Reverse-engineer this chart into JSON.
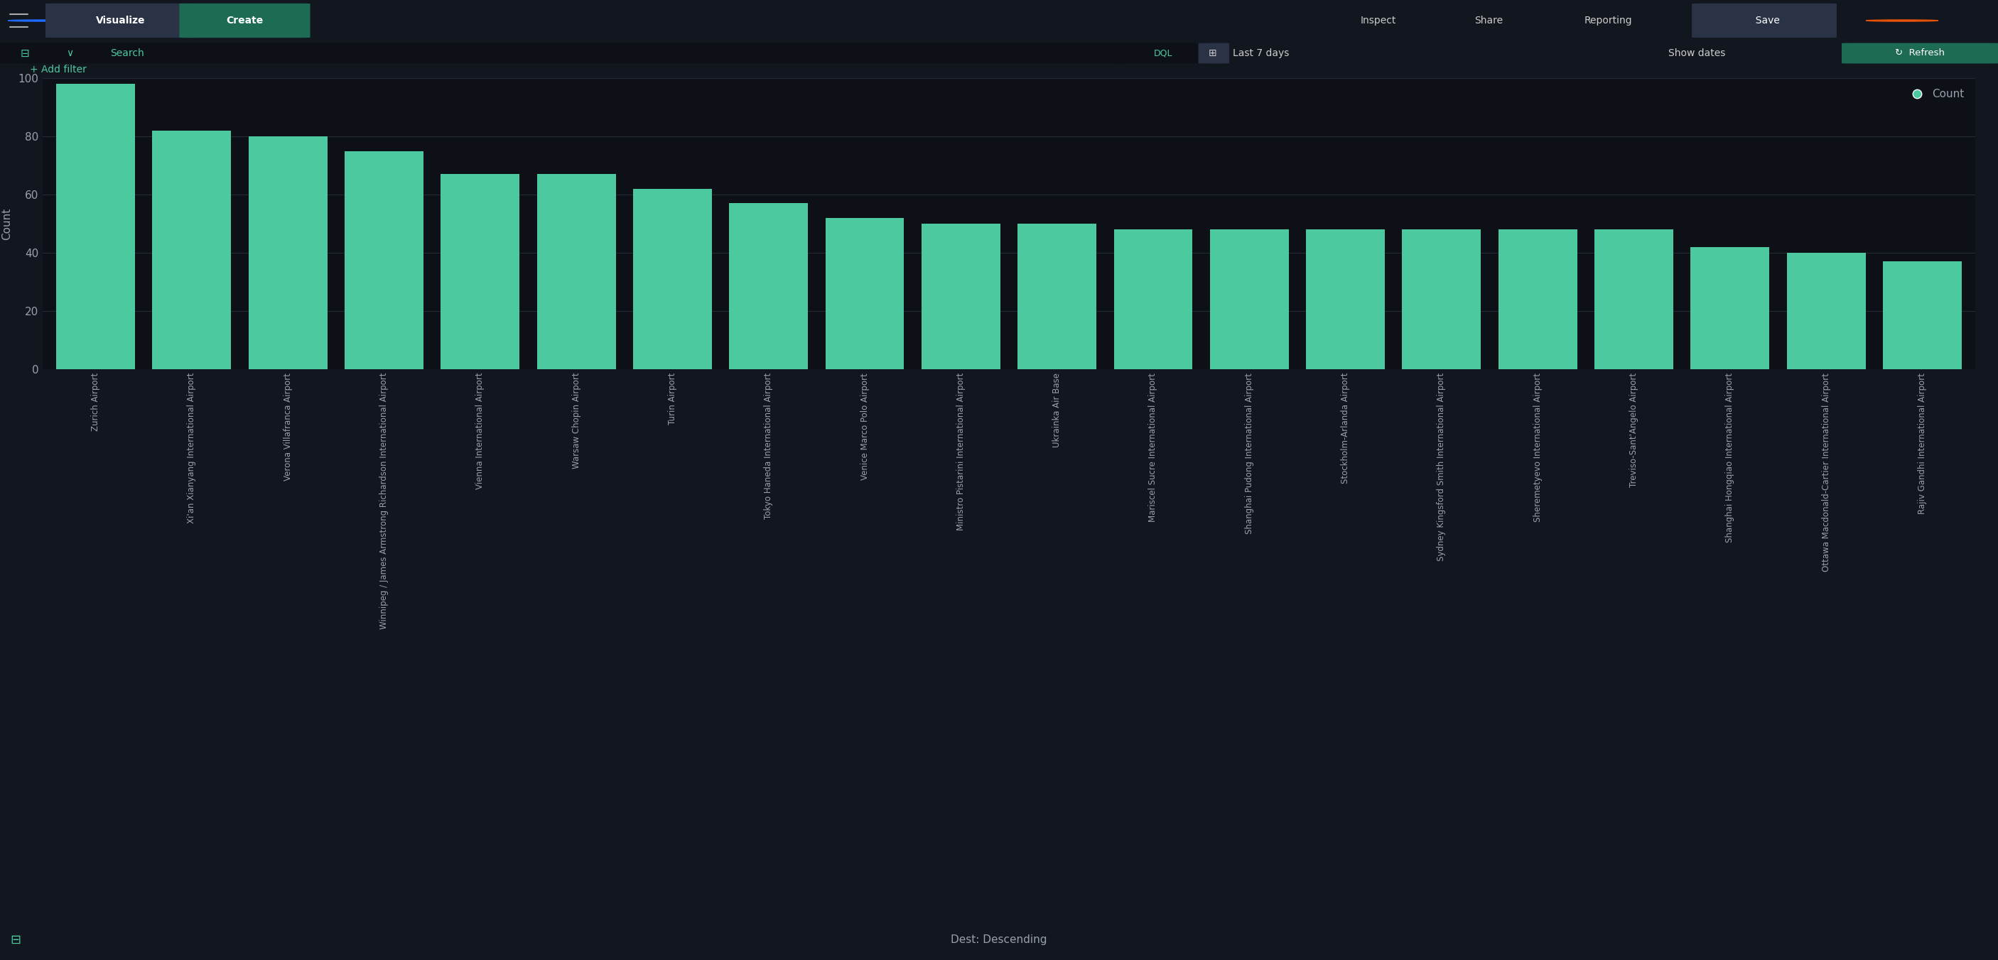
{
  "categories": [
    "Zurich Airport",
    "Xi'an Xianyang International Airport",
    "Verona Villafranca Airport",
    "Winnipeg / James Armstrong Richardson International Airport",
    "Vienna International Airport",
    "Warsaw Chopin Airport",
    "Turin Airport",
    "Tokyo Haneda International Airport",
    "Venice Marco Polo Airport",
    "Ministro Pistarini International Airport",
    "Ukrainka Air Base",
    "Mariscel Sucre International Airport",
    "Shanghai Pudong International Airport",
    "Stockholm-Arlanda Airport",
    "Sydney Kingsford Smith International Airport",
    "Sheremetyevo International Airport",
    "Treviso-Sant'Angelo Airport",
    "Shanghai Hongqiao International Airport",
    "Ottawa Macdonald-Cartier International Airport",
    "Rajiv Gandhi International Airport"
  ],
  "values": [
    98,
    82,
    80,
    75,
    67,
    67,
    62,
    57,
    52,
    50,
    50,
    48,
    48,
    48,
    48,
    48,
    48,
    42,
    40,
    37
  ],
  "bar_color": "#4DC9A0",
  "bg_color": "#12171f",
  "header_bg": "#1a2030",
  "filter_bg": "#1a2030",
  "chart_bg": "#0d1117",
  "tick_color": "#9aa0ab",
  "grid_color": "#232b38",
  "legend_dot_color": "#4DC9A0",
  "legend_text": "Count",
  "ylabel": "Count",
  "xlabel_footer": "Dest: Descending",
  "ylim": [
    0,
    100
  ],
  "yticks": [
    0,
    20,
    40,
    60,
    80,
    100
  ],
  "footer_color": "#9aa0ab"
}
